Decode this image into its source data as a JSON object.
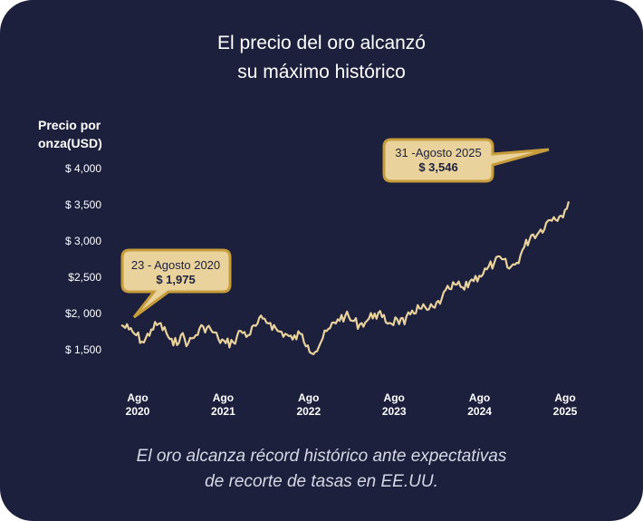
{
  "colors": {
    "background": "#1c203d",
    "line": "#e9d29c",
    "callout_fill": "#e9d29c",
    "callout_border": "#c79d3c",
    "text": "#ffffff"
  },
  "title": {
    "line1": "El precio del oro alcanzó",
    "line2": "su máximo histórico"
  },
  "caption": {
    "line1": "El oro alcanza récord histórico ante expectativas",
    "line2": "de recorte de tasas en EE.UU."
  },
  "chart_data": {
    "type": "line",
    "title": "El precio del oro alcanzó su máximo histórico",
    "ylabel_lines": [
      "Precio por",
      "onza(USD)"
    ],
    "y_tick_labels": [
      "$ 4,000",
      "$ 3,500",
      "$ 3,000",
      "$2,500",
      "$2, 000",
      "$ 1,500"
    ],
    "y_tick_values": [
      4000,
      3500,
      3000,
      2500,
      2000,
      1500
    ],
    "x_tick_labels": [
      {
        "month": "Ago",
        "year": "2020"
      },
      {
        "month": "Ago",
        "year": "2021"
      },
      {
        "month": "Ago",
        "year": "2022"
      },
      {
        "month": "Ago",
        "year": "2023"
      },
      {
        "month": "Ago",
        "year": "2024"
      },
      {
        "month": "Ago",
        "year": "2025"
      }
    ],
    "ylim": [
      1500,
      4000
    ],
    "grid": false,
    "series": [
      {
        "x": [
          "2020-08",
          "2020-09",
          "2020-10",
          "2020-11",
          "2020-12",
          "2021-01",
          "2021-02",
          "2021-03",
          "2021-04",
          "2021-05",
          "2021-06",
          "2021-07",
          "2021-08",
          "2021-09",
          "2021-10",
          "2021-11",
          "2021-12",
          "2022-01",
          "2022-02",
          "2022-03",
          "2022-04",
          "2022-05",
          "2022-06",
          "2022-07",
          "2022-08",
          "2022-09",
          "2022-10",
          "2022-11",
          "2022-12",
          "2023-01",
          "2023-02",
          "2023-03",
          "2023-04",
          "2023-05",
          "2023-06",
          "2023-07",
          "2023-08",
          "2023-09",
          "2023-10",
          "2023-11",
          "2023-12",
          "2024-01",
          "2024-02",
          "2024-03",
          "2024-04",
          "2024-05",
          "2024-06",
          "2024-07",
          "2024-08",
          "2024-09",
          "2024-10",
          "2024-11",
          "2024-12",
          "2025-01",
          "2025-02",
          "2025-03",
          "2025-04",
          "2025-05",
          "2025-06",
          "2025-07",
          "2025-08"
        ],
        "values": [
          1840,
          1780,
          1700,
          1600,
          1780,
          1860,
          1730,
          1560,
          1700,
          1590,
          1700,
          1820,
          1780,
          1650,
          1590,
          1600,
          1760,
          1700,
          1830,
          1930,
          1870,
          1760,
          1720,
          1640,
          1720,
          1560,
          1470,
          1660,
          1800,
          1920,
          1970,
          1900,
          1850,
          1900,
          2000,
          1950,
          1870,
          1920,
          1850,
          2040,
          2070,
          2050,
          2080,
          2210,
          2340,
          2400,
          2330,
          2470,
          2520,
          2610,
          2700,
          2750,
          2620,
          2700,
          2920,
          3080,
          3120,
          3250,
          3330,
          3350,
          3546
        ]
      }
    ],
    "annotations": [
      {
        "date": "23 - Agosto 2020",
        "value_label": "$ 1,975"
      },
      {
        "date": "31 -Agosto 2025",
        "value_label": "$ 3,546"
      }
    ]
  }
}
